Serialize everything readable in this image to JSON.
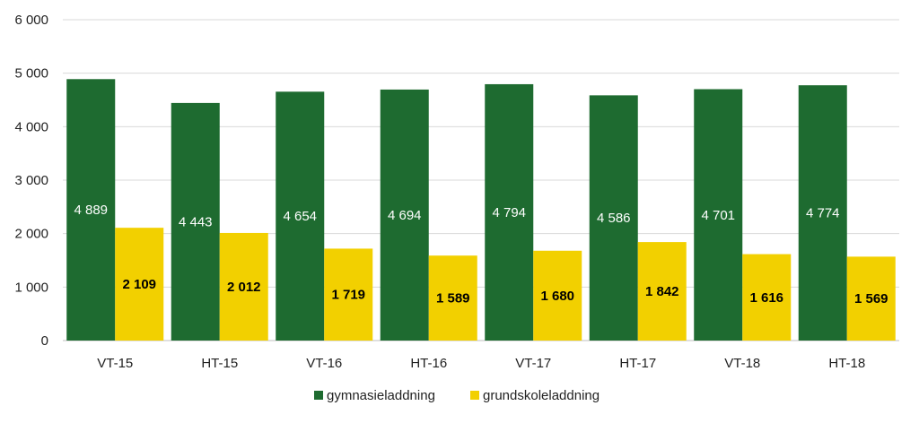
{
  "chart_data": {
    "type": "bar",
    "categories": [
      "VT-15",
      "HT-15",
      "VT-16",
      "HT-16",
      "VT-17",
      "HT-17",
      "VT-18",
      "HT-18"
    ],
    "series": [
      {
        "name": "gymnasieladdning",
        "color": "#1e6b30",
        "values": [
          4889,
          4443,
          4654,
          4694,
          4794,
          4586,
          4701,
          4774
        ],
        "labels": [
          "4 889",
          "4 443",
          "4 654",
          "4 694",
          "4 794",
          "4 586",
          "4 701",
          "4 774"
        ]
      },
      {
        "name": "grundskoleladdning",
        "color": "#f2d000",
        "values": [
          2109,
          2012,
          1719,
          1589,
          1680,
          1842,
          1616,
          1569
        ],
        "labels": [
          "2 109",
          "2 012",
          "1 719",
          "1 589",
          "1 680",
          "1 842",
          "1 616",
          "1 569"
        ]
      }
    ],
    "ylim": [
      0,
      6000
    ],
    "yticks": [
      0,
      1000,
      2000,
      3000,
      4000,
      5000,
      6000
    ],
    "ytick_labels": [
      "0",
      "1 000",
      "2 000",
      "3 000",
      "4 000",
      "5 000",
      "6 000"
    ],
    "grid": true,
    "legend_position": "bottom",
    "title": "",
    "xlabel": "",
    "ylabel": ""
  }
}
